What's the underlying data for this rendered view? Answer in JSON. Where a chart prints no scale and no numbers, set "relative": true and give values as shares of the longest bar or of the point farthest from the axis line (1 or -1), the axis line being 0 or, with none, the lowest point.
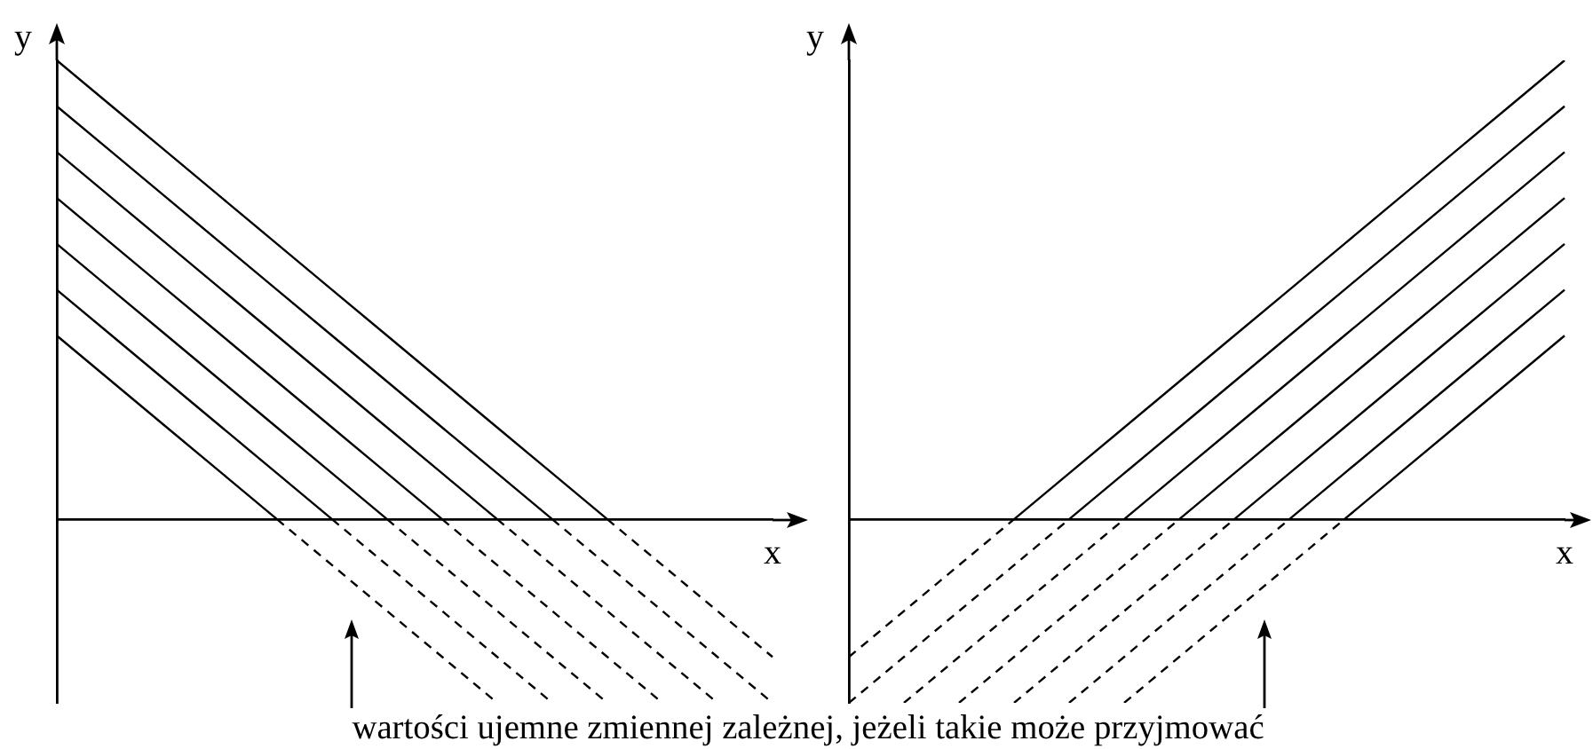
{
  "chart_data": [
    {
      "type": "line",
      "relative": true,
      "xlabel": "x",
      "ylabel": "y",
      "categories": [
        null,
        null,
        null,
        null,
        null,
        null,
        null,
        null,
        null,
        null,
        null,
        null,
        null,
        null
      ],
      "annotations": [
        "wartości ujemne zmiennej zależnej, jeżeli takie może przyjmować"
      ],
      "series": [
        {
          "color": "#000000",
          "line_style": "solid",
          "values": [
            1,
            0.9,
            0.8,
            0.7,
            0.6,
            0.5,
            0.4,
            0.3,
            0.2,
            0.1,
            0,
            null,
            null,
            null
          ]
        },
        {
          "color": "#000000",
          "line_style": "dashed",
          "values": [
            null,
            null,
            null,
            null,
            null,
            null,
            null,
            null,
            null,
            null,
            0,
            -0.1,
            -0.2,
            -0.3
          ]
        },
        {
          "color": "#000000",
          "line_style": "solid",
          "values": [
            0.9,
            0.8,
            0.7,
            0.6,
            0.5,
            0.4,
            0.3,
            0.2,
            0.1,
            0,
            null,
            null,
            null,
            null
          ]
        },
        {
          "color": "#000000",
          "line_style": "dashed",
          "values": [
            null,
            null,
            null,
            null,
            null,
            null,
            null,
            null,
            null,
            0,
            -0.1,
            -0.2,
            -0.3,
            -0.4
          ]
        },
        {
          "color": "#000000",
          "line_style": "solid",
          "values": [
            0.8,
            0.7,
            0.6,
            0.5,
            0.4,
            0.3,
            0.2,
            0.1,
            0,
            null,
            null,
            null,
            null,
            null
          ]
        },
        {
          "color": "#000000",
          "line_style": "dashed",
          "values": [
            null,
            null,
            null,
            null,
            null,
            null,
            null,
            null,
            0,
            -0.1,
            -0.2,
            -0.3,
            -0.4,
            null
          ]
        },
        {
          "color": "#000000",
          "line_style": "solid",
          "values": [
            0.7,
            0.6,
            0.5,
            0.4,
            0.3,
            0.2,
            0.1,
            0,
            null,
            null,
            null,
            null,
            null,
            null
          ]
        },
        {
          "color": "#000000",
          "line_style": "dashed",
          "values": [
            null,
            null,
            null,
            null,
            null,
            null,
            null,
            0,
            -0.1,
            -0.2,
            -0.3,
            -0.4,
            null,
            null
          ]
        },
        {
          "color": "#000000",
          "line_style": "solid",
          "values": [
            0.6,
            0.5,
            0.4,
            0.3,
            0.2,
            0.1,
            0,
            null,
            null,
            null,
            null,
            null,
            null,
            null
          ]
        },
        {
          "color": "#000000",
          "line_style": "dashed",
          "values": [
            null,
            null,
            null,
            null,
            null,
            null,
            0,
            -0.1,
            -0.2,
            -0.3,
            -0.4,
            null,
            null,
            null
          ]
        },
        {
          "color": "#000000",
          "line_style": "solid",
          "values": [
            0.5,
            0.4,
            0.3,
            0.2,
            0.1,
            0,
            null,
            null,
            null,
            null,
            null,
            null,
            null,
            null
          ]
        },
        {
          "color": "#000000",
          "line_style": "dashed",
          "values": [
            null,
            null,
            null,
            null,
            null,
            0,
            -0.1,
            -0.2,
            -0.3,
            -0.4,
            null,
            null,
            null,
            null
          ]
        },
        {
          "color": "#000000",
          "line_style": "solid",
          "values": [
            0.4,
            0.3,
            0.2,
            0.1,
            0,
            null,
            null,
            null,
            null,
            null,
            null,
            null,
            null,
            null
          ]
        },
        {
          "color": "#000000",
          "line_style": "dashed",
          "values": [
            null,
            null,
            null,
            null,
            0,
            -0.1,
            -0.2,
            -0.3,
            -0.4,
            null,
            null,
            null,
            null,
            null
          ]
        }
      ]
    },
    {
      "type": "line",
      "relative": true,
      "xlabel": "x",
      "ylabel": "y",
      "categories": [
        null,
        null,
        null,
        null,
        null,
        null,
        null,
        null,
        null,
        null,
        null,
        null,
        null,
        null
      ],
      "series": [
        {
          "color": "#000000",
          "line_style": "solid",
          "values": [
            null,
            null,
            null,
            0,
            0.1,
            0.2,
            0.3,
            0.4,
            0.5,
            0.6,
            0.7,
            0.8,
            0.9,
            1
          ]
        },
        {
          "color": "#000000",
          "line_style": "dashed",
          "values": [
            -0.3,
            -0.2,
            -0.1,
            0,
            null,
            null,
            null,
            null,
            null,
            null,
            null,
            null,
            null,
            null
          ]
        },
        {
          "color": "#000000",
          "line_style": "solid",
          "values": [
            null,
            null,
            null,
            null,
            0,
            0.1,
            0.2,
            0.3,
            0.4,
            0.5,
            0.6,
            0.7,
            0.8,
            0.9
          ]
        },
        {
          "color": "#000000",
          "line_style": "dashed",
          "values": [
            -0.4,
            -0.3,
            -0.2,
            -0.1,
            0,
            null,
            null,
            null,
            null,
            null,
            null,
            null,
            null,
            null
          ]
        },
        {
          "color": "#000000",
          "line_style": "solid",
          "values": [
            null,
            null,
            null,
            null,
            null,
            0,
            0.1,
            0.2,
            0.3,
            0.4,
            0.5,
            0.6,
            0.7,
            0.8
          ]
        },
        {
          "color": "#000000",
          "line_style": "dashed",
          "values": [
            null,
            -0.4,
            -0.3,
            -0.2,
            -0.1,
            0,
            null,
            null,
            null,
            null,
            null,
            null,
            null,
            null
          ]
        },
        {
          "color": "#000000",
          "line_style": "solid",
          "values": [
            null,
            null,
            null,
            null,
            null,
            null,
            0,
            0.1,
            0.2,
            0.3,
            0.4,
            0.5,
            0.6,
            0.7
          ]
        },
        {
          "color": "#000000",
          "line_style": "dashed",
          "values": [
            null,
            null,
            -0.4,
            -0.3,
            -0.2,
            -0.1,
            0,
            null,
            null,
            null,
            null,
            null,
            null,
            null
          ]
        },
        {
          "color": "#000000",
          "line_style": "solid",
          "values": [
            null,
            null,
            null,
            null,
            null,
            null,
            null,
            0,
            0.1,
            0.2,
            0.3,
            0.4,
            0.5,
            0.6
          ]
        },
        {
          "color": "#000000",
          "line_style": "dashed",
          "values": [
            null,
            null,
            null,
            -0.4,
            -0.3,
            -0.2,
            -0.1,
            0,
            null,
            null,
            null,
            null,
            null,
            null
          ]
        },
        {
          "color": "#000000",
          "line_style": "solid",
          "values": [
            null,
            null,
            null,
            null,
            null,
            null,
            null,
            null,
            0,
            0.1,
            0.2,
            0.3,
            0.4,
            0.5
          ]
        },
        {
          "color": "#000000",
          "line_style": "dashed",
          "values": [
            null,
            null,
            null,
            null,
            -0.4,
            -0.3,
            -0.2,
            -0.1,
            0,
            null,
            null,
            null,
            null,
            null
          ]
        },
        {
          "color": "#000000",
          "line_style": "solid",
          "values": [
            null,
            null,
            null,
            null,
            null,
            null,
            null,
            null,
            null,
            0,
            0.1,
            0.2,
            0.3,
            0.4
          ]
        },
        {
          "color": "#000000",
          "line_style": "dashed",
          "values": [
            null,
            null,
            null,
            null,
            null,
            -0.4,
            -0.3,
            -0.2,
            -0.1,
            0,
            null,
            null,
            null,
            null
          ]
        }
      ]
    }
  ]
}
